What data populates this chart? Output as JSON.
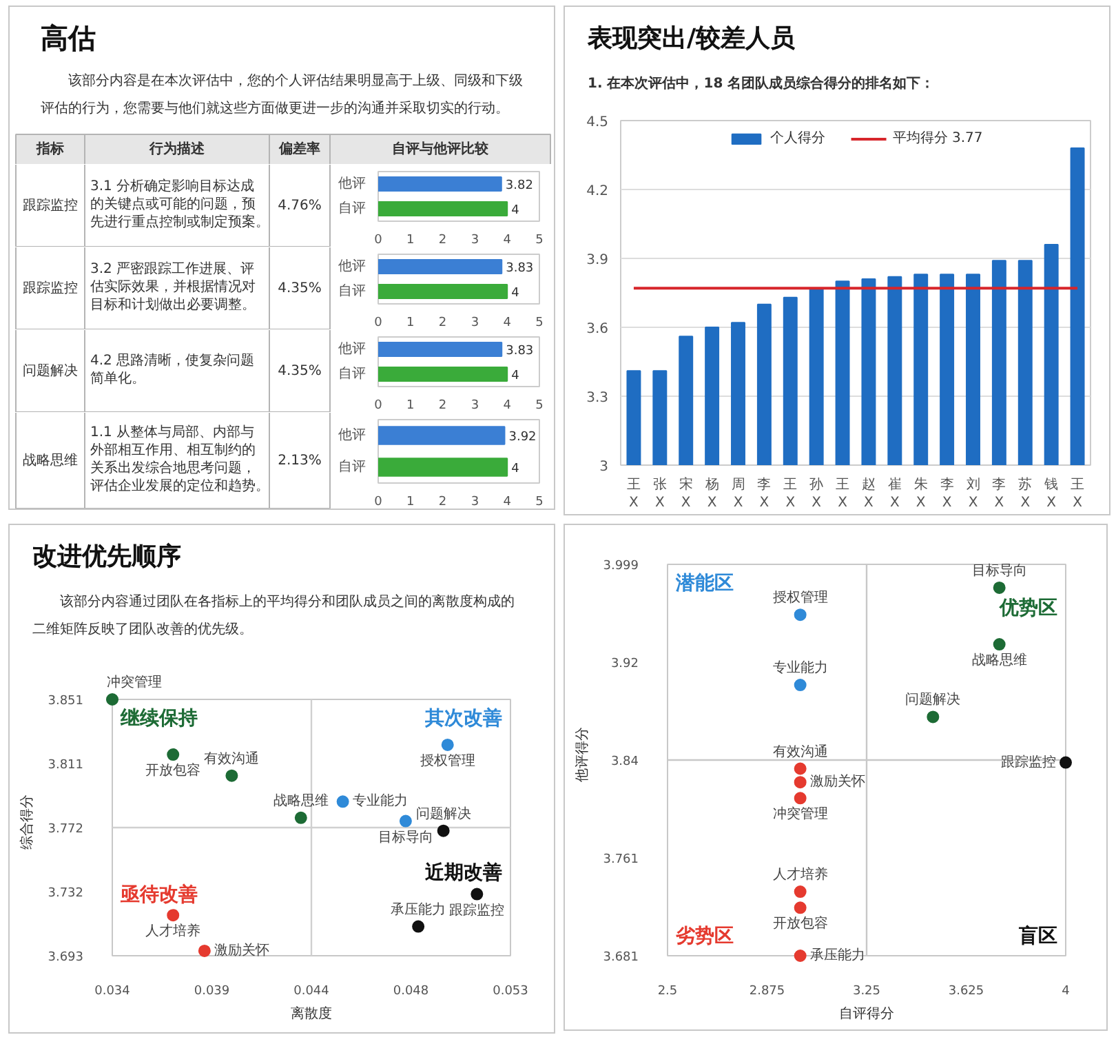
{
  "chart_data": [
    {
      "type": "other",
      "title": "高估",
      "subtitle": "该部分内容是在本次评估中，您的个人评估结果明显高于上级、同级和下级评估的行为，您需要与他们就这些方面做更进一步的沟通并采取切实的行动。",
      "annotations": [
        "指标",
        "行为描述",
        "偏差率",
        "自评与他评比较",
        "跟踪监控",
        "3.1 分析确定影响目标达成的关键点或可能的问题，预先进行重点控制或制定预案。",
        "4.76%",
        "跟踪监控",
        "3.2 严密跟踪工作进展、评估实际效果，并根据情况对目标和计划做出必要调整。",
        "4.35%",
        "问题解决",
        "4.2 思路清晰，使复杂问题简单化。",
        "4.35%",
        "战略思维",
        "1.1 从整体与局部、内部与外部相互作用、相互制约的关系出发综合地思考问题，评估企业发展的定位和趋势。",
        "2.13%"
      ]
    },
    {
      "type": "bar",
      "orientation": "horizontal",
      "categories": [
        "他评",
        "自评"
      ],
      "values": [
        3.82,
        4
      ],
      "colors": [
        "#3b7fd4",
        "#3aab3a"
      ],
      "xlim": [
        0,
        5
      ],
      "xticks": [
        0,
        1,
        2,
        3,
        4,
        5
      ],
      "data_labels": true
    },
    {
      "type": "bar",
      "orientation": "horizontal",
      "categories": [
        "他评",
        "自评"
      ],
      "values": [
        3.83,
        4
      ],
      "colors": [
        "#3b7fd4",
        "#3aab3a"
      ],
      "xlim": [
        0,
        5
      ],
      "xticks": [
        0,
        1,
        2,
        3,
        4,
        5
      ],
      "data_labels": true
    },
    {
      "type": "bar",
      "orientation": "horizontal",
      "categories": [
        "他评",
        "自评"
      ],
      "values": [
        3.83,
        4
      ],
      "colors": [
        "#3b7fd4",
        "#3aab3a"
      ],
      "xlim": [
        0,
        5
      ],
      "xticks": [
        0,
        1,
        2,
        3,
        4,
        5
      ],
      "data_labels": true
    },
    {
      "type": "bar",
      "orientation": "horizontal",
      "categories": [
        "他评",
        "自评"
      ],
      "values": [
        3.92,
        4
      ],
      "colors": [
        "#3b7fd4",
        "#3aab3a"
      ],
      "xlim": [
        0,
        5
      ],
      "xticks": [
        0,
        1,
        2,
        3,
        4,
        5
      ],
      "data_labels": true
    },
    {
      "type": "bar",
      "title": "表现突出/较差人员",
      "subtitle": "1. 在本次评估中，18 名团队成员综合得分的排名如下：",
      "categories": [
        "王X",
        "张X",
        "宋X",
        "杨X",
        "周X",
        "李X",
        "王X",
        "孙X",
        "王X",
        "赵X",
        "崔X",
        "朱X",
        "李X",
        "刘X",
        "李X",
        "苏X",
        "钱X",
        "王X"
      ],
      "series": [
        {
          "name": "个人得分",
          "color": "#1f6dc2",
          "values": [
            3.41,
            3.41,
            3.56,
            3.6,
            3.62,
            3.7,
            3.73,
            3.77,
            3.8,
            3.81,
            3.82,
            3.83,
            3.83,
            3.83,
            3.89,
            3.89,
            3.96,
            4.38
          ]
        },
        {
          "name": "平均得分 3.77",
          "type": "line",
          "color": "#d7262b",
          "values": [
            3.77,
            3.77,
            3.77,
            3.77,
            3.77,
            3.77,
            3.77,
            3.77,
            3.77,
            3.77,
            3.77,
            3.77,
            3.77,
            3.77,
            3.77,
            3.77,
            3.77,
            3.77
          ]
        }
      ],
      "ylim": [
        3,
        4.5
      ],
      "yticks": [
        3,
        3.3,
        3.6,
        3.9,
        4.2,
        4.5
      ],
      "grid": "y",
      "legend": "top"
    },
    {
      "type": "scatter",
      "title": "改进优先顺序",
      "subtitle": "该部分内容通过团队在各指标上的平均得分和团队成员之间的离散度构成的二维矩阵反映了团队改善的优先级。",
      "xlabel": "离散度",
      "ylabel": "综合得分",
      "marker": "circle",
      "series": [
        {
          "color": "#1d6b35",
          "x": [
            0.034,
            0.0369,
            0.0397,
            0.043
          ],
          "values": [
            3.851,
            3.817,
            3.804,
            3.778
          ]
        },
        {
          "color": "#2f8ad8",
          "x": [
            0.045,
            0.048,
            0.05
          ],
          "values": [
            3.788,
            3.776,
            3.823
          ]
        },
        {
          "color": "#e53a2f",
          "x": [
            0.0369,
            0.0384
          ],
          "values": [
            3.718,
            3.696
          ]
        },
        {
          "color": "#111111",
          "x": [
            0.0498,
            0.0514,
            0.0486
          ],
          "values": [
            3.77,
            3.731,
            3.711
          ]
        }
      ],
      "xlim": [
        0.034,
        0.053
      ],
      "xticks": [
        0.034,
        {
          "value": 0.03875,
          "label": "0.039"
        },
        {
          "value": 0.0435,
          "label": "0.044"
        },
        {
          "value": 0.04825,
          "label": "0.048"
        },
        0.053
      ],
      "ylim": [
        3.693,
        3.851
      ],
      "yticks": [
        3.693,
        {
          "value": 3.7325,
          "label": "3.732"
        },
        3.772,
        {
          "value": 3.8115,
          "label": "3.811"
        },
        3.851
      ],
      "ref_lines": [
        {
          "axis": "x",
          "value": 0.0435,
          "color": "#d0d0d0"
        },
        {
          "axis": "y",
          "value": 3.772,
          "color": "#d0d0d0"
        }
      ],
      "annotations": [
        "继续保持",
        "其次改善",
        "亟待改善",
        "近期改善",
        {
          "text": "冲突管理",
          "x": 0.034,
          "y": 3.851
        },
        {
          "text": "开放包容",
          "x": 0.0369,
          "y": 3.817
        },
        {
          "text": "有效沟通",
          "x": 0.0397,
          "y": 3.804
        },
        {
          "text": "战略思维",
          "x": 0.043,
          "y": 3.778
        },
        {
          "text": "专业能力",
          "x": 0.045,
          "y": 3.788
        },
        {
          "text": "目标导向",
          "x": 0.048,
          "y": 3.776
        },
        {
          "text": "授权管理",
          "x": 0.05,
          "y": 3.823
        },
        {
          "text": "问题解决",
          "x": 0.0498,
          "y": 3.77
        },
        {
          "text": "跟踪监控",
          "x": 0.0514,
          "y": 3.731
        },
        {
          "text": "承压能力",
          "x": 0.0486,
          "y": 3.711
        },
        {
          "text": "人才培养",
          "x": 0.0369,
          "y": 3.718
        },
        {
          "text": "激励关怀",
          "x": 0.0384,
          "y": 3.696
        }
      ]
    },
    {
      "type": "scatter",
      "xlabel": "自评得分",
      "ylabel": "他评得分",
      "marker": "circle",
      "series": [
        {
          "color": "#2f8ad8",
          "x": [
            3.0,
            3.0
          ],
          "values": [
            3.958,
            3.901
          ]
        },
        {
          "color": "#1d6b35",
          "x": [
            3.75,
            3.75,
            3.5
          ],
          "values": [
            3.98,
            3.934,
            3.875
          ]
        },
        {
          "color": "#e53a2f",
          "x": [
            3.0,
            3.0,
            3.0,
            3.0,
            3.0,
            3.0
          ],
          "values": [
            3.833,
            3.822,
            3.809,
            3.733,
            3.72,
            3.681
          ]
        },
        {
          "color": "#111111",
          "x": [
            4.0
          ],
          "values": [
            3.838
          ]
        }
      ],
      "xlim": [
        2.5,
        4
      ],
      "xticks": [
        2.5,
        2.875,
        3.25,
        3.625,
        4
      ],
      "ylim": [
        3.681,
        3.999
      ],
      "yticks": [
        3.681,
        {
          "value": 3.7605,
          "label": "3.761"
        },
        3.84,
        {
          "value": 3.9195,
          "label": "3.92"
        },
        3.999
      ],
      "ref_lines": [
        {
          "axis": "x",
          "value": 3.25,
          "color": "#c8c8c8"
        },
        {
          "axis": "y",
          "value": 3.84,
          "color": "#c8c8c8"
        }
      ],
      "annotations": [
        "潜能区",
        "优势区",
        "劣势区",
        "盲区",
        {
          "text": "授权管理",
          "x": 3.0,
          "y": 3.958
        },
        {
          "text": "专业能力",
          "x": 3.0,
          "y": 3.901
        },
        {
          "text": "目标导向",
          "x": 3.75,
          "y": 3.98
        },
        {
          "text": "战略思维",
          "x": 3.75,
          "y": 3.934
        },
        {
          "text": "问题解决",
          "x": 3.5,
          "y": 3.875
        },
        {
          "text": "跟踪监控",
          "x": 4.0,
          "y": 3.838
        },
        {
          "text": "有效沟通",
          "x": 3.0,
          "y": 3.833
        },
        {
          "text": "激励关怀",
          "x": 3.0,
          "y": 3.822
        },
        {
          "text": "冲突管理",
          "x": 3.0,
          "y": 3.809
        },
        {
          "text": "人才培养",
          "x": 3.0,
          "y": 3.733
        },
        {
          "text": "开放包容",
          "x": 3.0,
          "y": 3.72
        },
        {
          "text": "承压能力",
          "x": 3.0,
          "y": 3.681
        }
      ]
    }
  ]
}
